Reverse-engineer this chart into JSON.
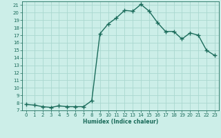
{
  "x": [
    0,
    1,
    2,
    3,
    4,
    5,
    6,
    7,
    8,
    9,
    10,
    11,
    12,
    13,
    14,
    15,
    16,
    17,
    18,
    19,
    20,
    21,
    22,
    23
  ],
  "y": [
    7.8,
    7.7,
    7.5,
    7.4,
    7.6,
    7.5,
    7.5,
    7.5,
    8.3,
    17.2,
    18.5,
    19.3,
    20.3,
    20.2,
    21.1,
    20.2,
    18.7,
    17.5,
    17.5,
    16.5,
    17.3,
    17.0,
    15.0,
    14.3
  ],
  "line_color": "#1a6b5a",
  "marker": "+",
  "marker_size": 4,
  "marker_linewidth": 1.0,
  "line_width": 1.0,
  "bg_color": "#cceee8",
  "grid_color": "#aad8d0",
  "xlabel": "Humidex (Indice chaleur)",
  "ylabel": "",
  "xlim": [
    -0.5,
    23.5
  ],
  "ylim": [
    7,
    21.5
  ],
  "yticks": [
    7,
    8,
    9,
    10,
    11,
    12,
    13,
    14,
    15,
    16,
    17,
    18,
    19,
    20,
    21
  ],
  "xticks": [
    0,
    1,
    2,
    3,
    4,
    5,
    6,
    7,
    8,
    9,
    10,
    11,
    12,
    13,
    14,
    15,
    16,
    17,
    18,
    19,
    20,
    21,
    22,
    23
  ],
  "tick_fontsize": 5.0,
  "xlabel_fontsize": 5.5
}
